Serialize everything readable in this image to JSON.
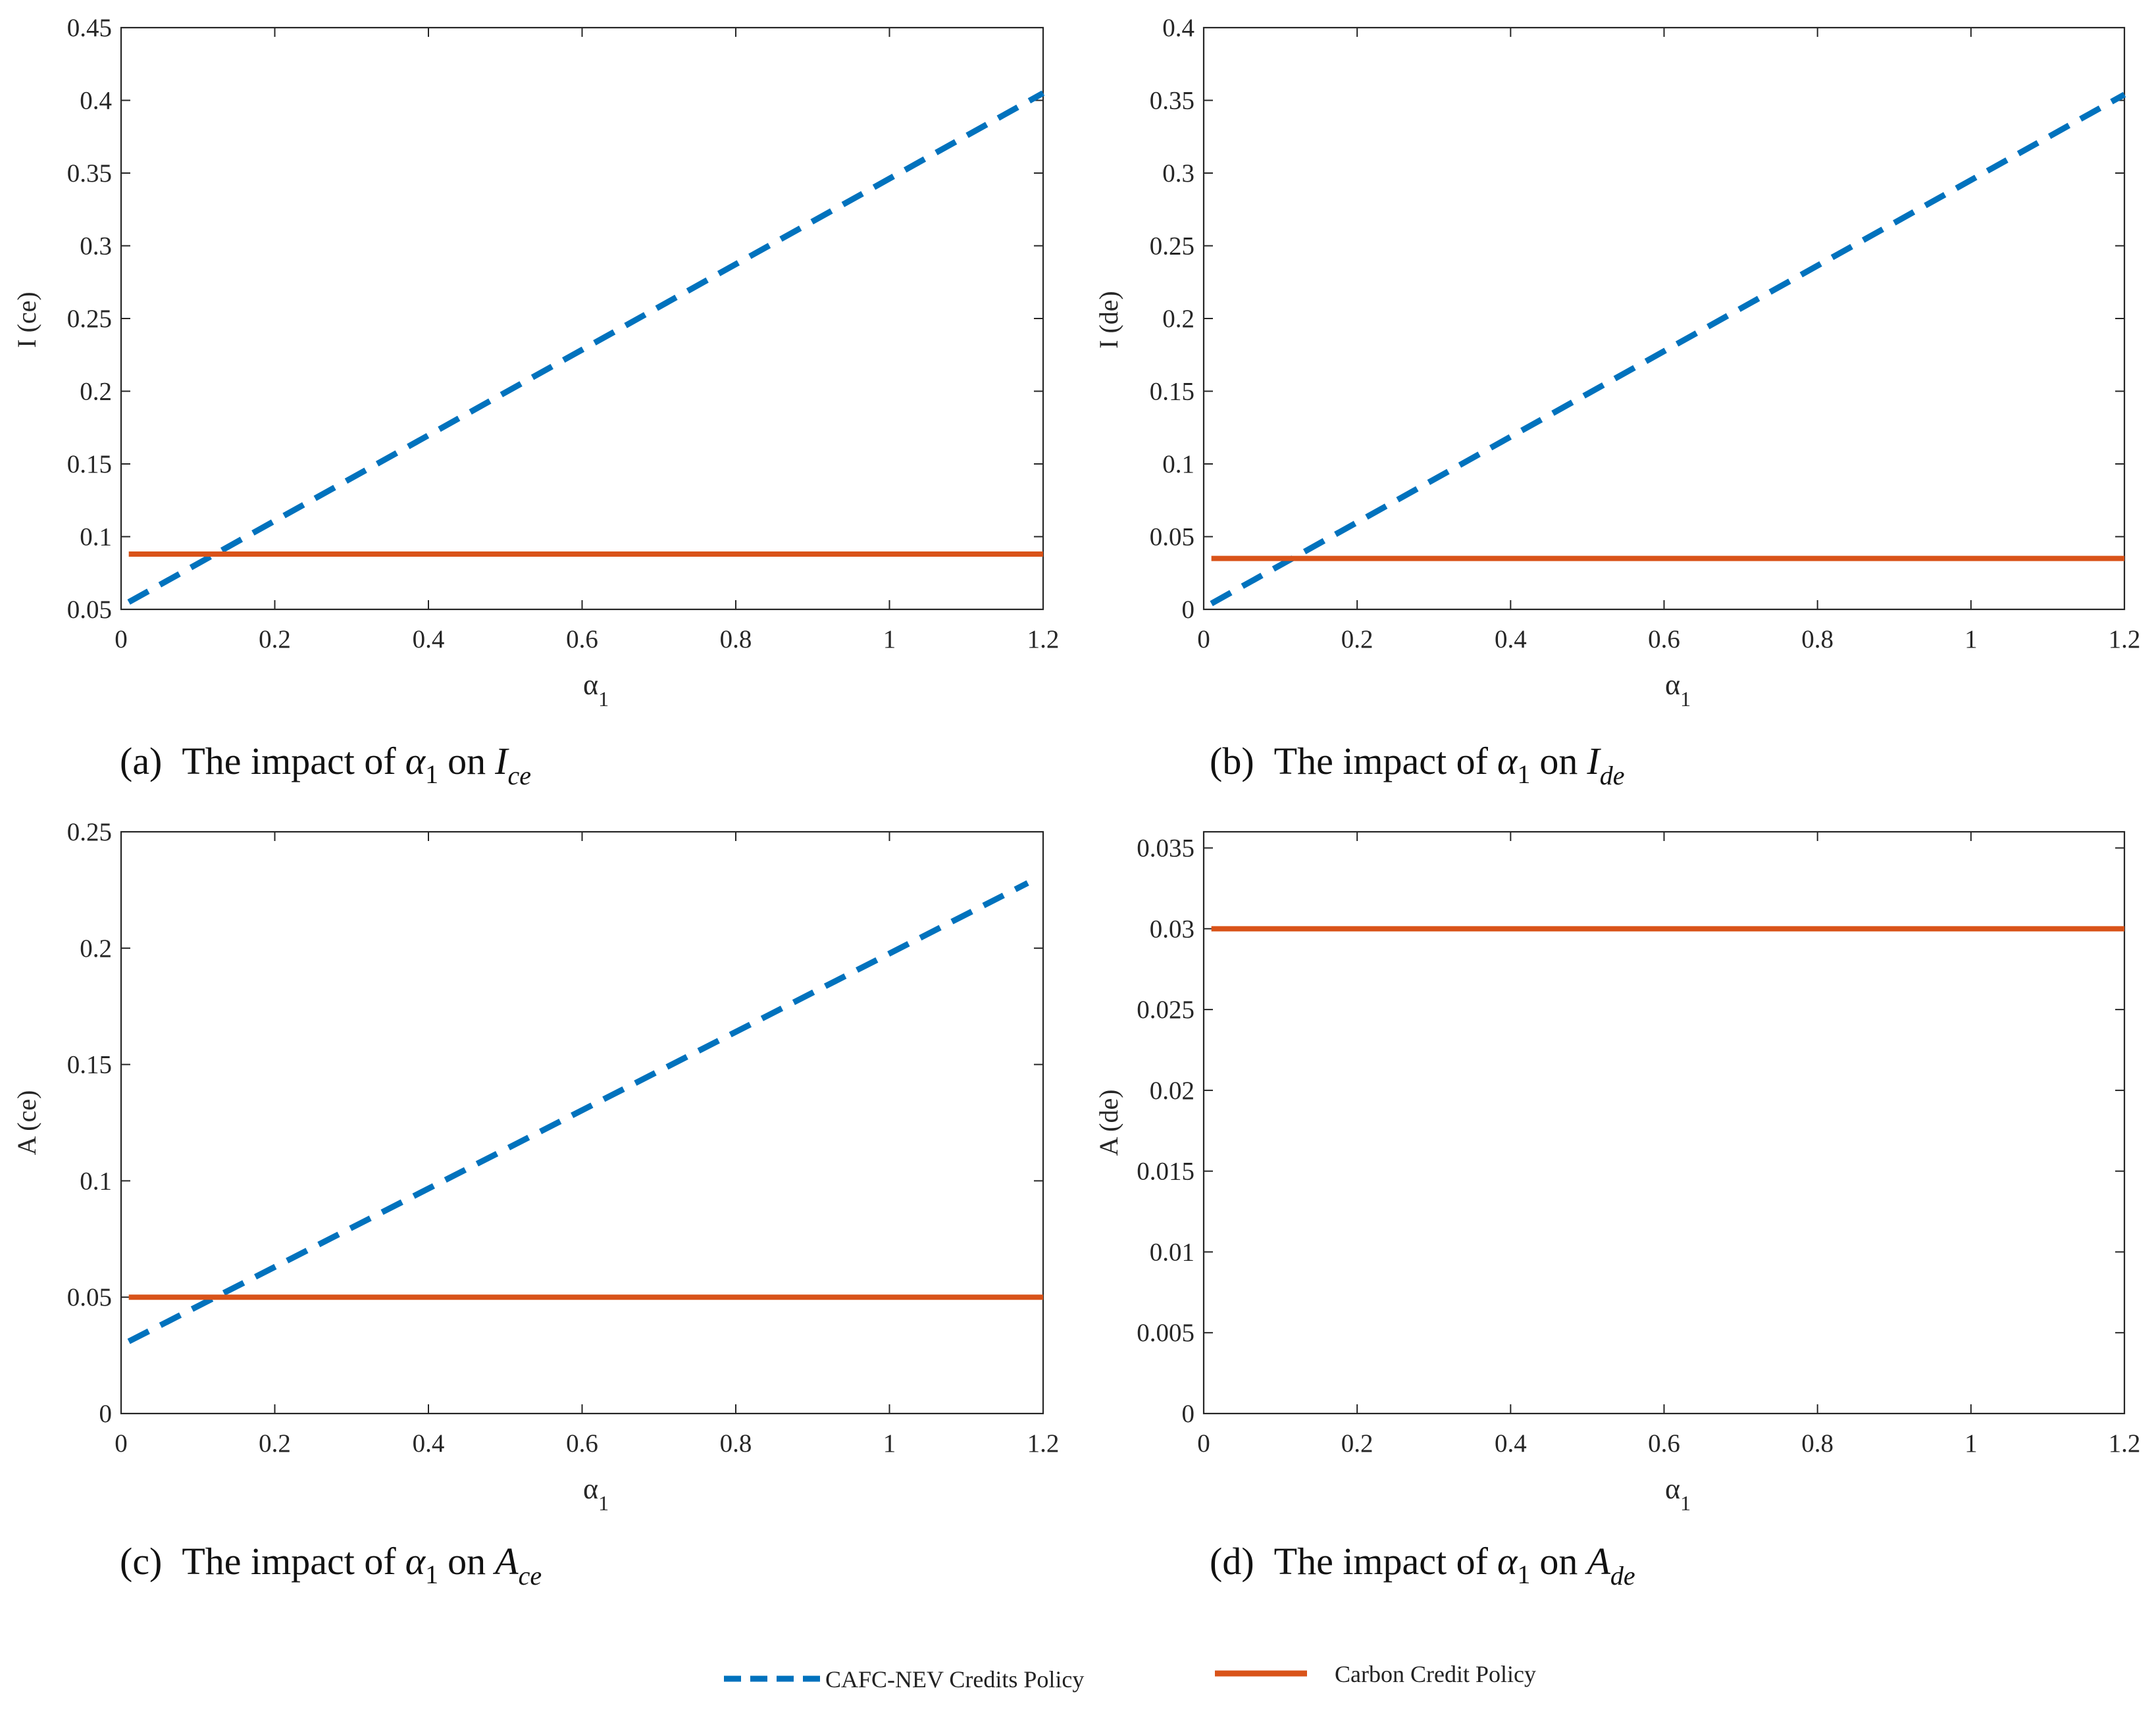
{
  "colors": {
    "cafc": "#0072BD",
    "carbon": "#D95319",
    "axis": "#262626"
  },
  "legend": {
    "cafc_label": "CAFC-NEV Credits Policy",
    "carbon_label": "Carbon Credit Policy"
  },
  "chart_data": [
    {
      "id": "a",
      "type": "line",
      "ylabel": "I (ce)",
      "xlabel_base": "α",
      "xlabel_sub": "1",
      "xlim": [
        0,
        1.2
      ],
      "ylim": [
        0.05,
        0.45
      ],
      "xticks": [
        0,
        0.2,
        0.4,
        0.6,
        0.8,
        1,
        1.2
      ],
      "xtick_labels": [
        "0",
        "0.2",
        "0.4",
        "0.6",
        "0.8",
        "1",
        "1.2"
      ],
      "yticks": [
        0.05,
        0.1,
        0.15,
        0.2,
        0.25,
        0.3,
        0.35,
        0.4,
        0.45
      ],
      "ytick_labels": [
        "0.05",
        "0.1",
        "0.15",
        "0.2",
        "0.25",
        "0.3",
        "0.35",
        "0.4",
        "0.45"
      ],
      "series": [
        {
          "name": "CAFC-NEV Credits Policy",
          "style": "dashed",
          "x": [
            0.01,
            1.2
          ],
          "y": [
            0.055,
            0.405
          ]
        },
        {
          "name": "Carbon Credit Policy",
          "style": "solid",
          "x": [
            0.01,
            1.2
          ],
          "y": [
            0.088,
            0.088
          ]
        }
      ],
      "caption": {
        "label": "(a)",
        "text": "The impact of",
        "alpha": "α",
        "alpha_sub": "1",
        "on": "on",
        "var": "I",
        "var_sub": "ce"
      }
    },
    {
      "id": "b",
      "type": "line",
      "ylabel": "I (de)",
      "xlabel_base": "α",
      "xlabel_sub": "1",
      "xlim": [
        0,
        1.2
      ],
      "ylim": [
        0,
        0.4
      ],
      "xticks": [
        0,
        0.2,
        0.4,
        0.6,
        0.8,
        1,
        1.2
      ],
      "xtick_labels": [
        "0",
        "0.2",
        "0.4",
        "0.6",
        "0.8",
        "1",
        "1.2"
      ],
      "yticks": [
        0,
        0.05,
        0.1,
        0.15,
        0.2,
        0.25,
        0.3,
        0.35,
        0.4
      ],
      "ytick_labels": [
        "0",
        "0.05",
        "0.1",
        "0.15",
        "0.2",
        "0.25",
        "0.3",
        "0.35",
        "0.4"
      ],
      "series": [
        {
          "name": "CAFC-NEV Credits Policy",
          "style": "dashed",
          "x": [
            0.01,
            1.2
          ],
          "y": [
            0.004,
            0.354
          ]
        },
        {
          "name": "Carbon Credit Policy",
          "style": "solid",
          "x": [
            0.01,
            1.2
          ],
          "y": [
            0.035,
            0.035
          ]
        }
      ],
      "caption": {
        "label": "(b)",
        "text": "The impact of",
        "alpha": "α",
        "alpha_sub": "1",
        "on": "on",
        "var": "I",
        "var_sub": "de"
      }
    },
    {
      "id": "c",
      "type": "line",
      "ylabel": "A (ce)",
      "xlabel_base": "α",
      "xlabel_sub": "1",
      "xlim": [
        0,
        1.2
      ],
      "ylim": [
        0,
        0.25
      ],
      "xticks": [
        0,
        0.2,
        0.4,
        0.6,
        0.8,
        1,
        1.2
      ],
      "xtick_labels": [
        "0",
        "0.2",
        "0.4",
        "0.6",
        "0.8",
        "1",
        "1.2"
      ],
      "yticks": [
        0,
        0.05,
        0.1,
        0.15,
        0.2,
        0.25
      ],
      "ytick_labels": [
        "0",
        "0.05",
        "0.1",
        "0.15",
        "0.2",
        "0.25"
      ],
      "series": [
        {
          "name": "CAFC-NEV Credits Policy",
          "style": "dashed",
          "x": [
            0.01,
            1.18
          ],
          "y": [
            0.031,
            0.228
          ]
        },
        {
          "name": "Carbon Credit Policy",
          "style": "solid",
          "x": [
            0.01,
            1.2
          ],
          "y": [
            0.05,
            0.05
          ]
        }
      ],
      "caption": {
        "label": "(c)",
        "text": "The impact of",
        "alpha": "α",
        "alpha_sub": "1",
        "on": "on",
        "var": "A",
        "var_sub": "ce"
      }
    },
    {
      "id": "d",
      "type": "line",
      "ylabel": "A (de)",
      "xlabel_base": "α",
      "xlabel_sub": "1",
      "xlim": [
        0,
        1.2
      ],
      "ylim": [
        0,
        0.036
      ],
      "xticks": [
        0,
        0.2,
        0.4,
        0.6,
        0.8,
        1,
        1.2
      ],
      "xtick_labels": [
        "0",
        "0.2",
        "0.4",
        "0.6",
        "0.8",
        "1",
        "1.2"
      ],
      "yticks": [
        0,
        0.005,
        0.01,
        0.015,
        0.02,
        0.025,
        0.03,
        0.035
      ],
      "ytick_labels": [
        "0",
        "0.005",
        "0.01",
        "0.015",
        "0.02",
        "0.025",
        "0.03",
        "0.035"
      ],
      "series": [
        {
          "name": "Carbon Credit Policy",
          "style": "solid",
          "x": [
            0.01,
            1.2
          ],
          "y": [
            0.03,
            0.03
          ]
        }
      ],
      "caption": {
        "label": "(d)",
        "text": "The impact of",
        "alpha": "α",
        "alpha_sub": "1",
        "on": "on",
        "var": "A",
        "var_sub": "de"
      }
    }
  ]
}
